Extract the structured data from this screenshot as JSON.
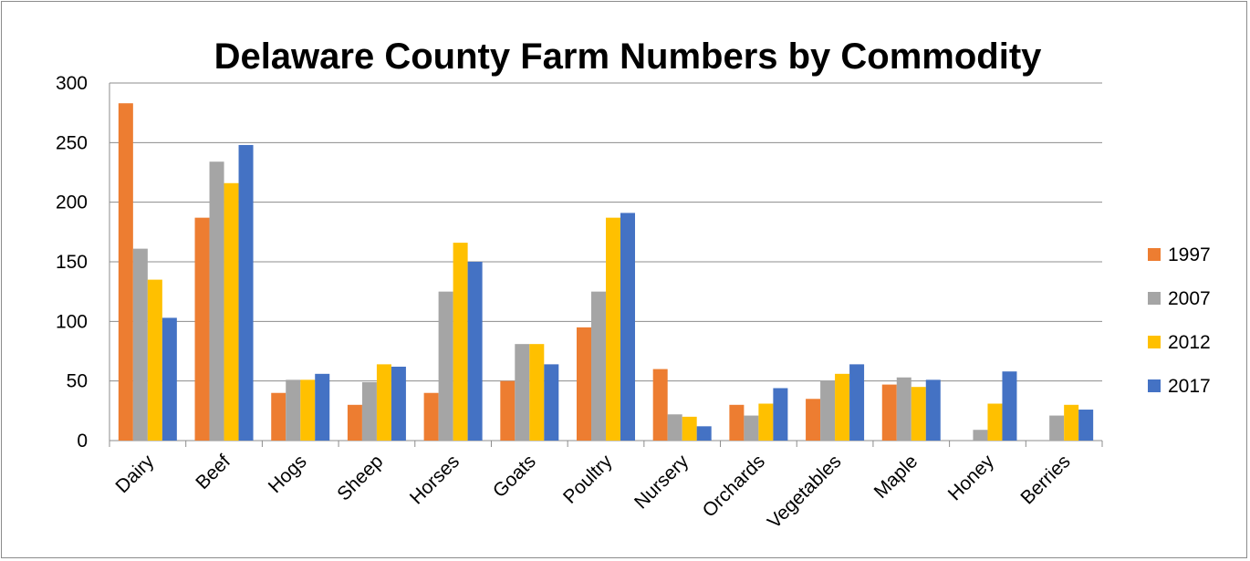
{
  "chart_data": {
    "type": "bar",
    "title": "Delaware County Farm Numbers by Commodity",
    "xlabel": "",
    "ylabel": "",
    "ylim": [
      0,
      300
    ],
    "yticks": [
      0,
      50,
      100,
      150,
      200,
      250,
      300
    ],
    "grid": true,
    "legend_position": "right",
    "categories": [
      "Dairy",
      "Beef",
      "Hogs",
      "Sheep",
      "Horses",
      "Goats",
      "Poultry",
      "Nursery",
      "Orchards",
      "Vegetables",
      "Maple",
      "Honey",
      "Berries"
    ],
    "series": [
      {
        "name": "1997",
        "color": "#ed7d31",
        "values": [
          283,
          187,
          40,
          30,
          40,
          50,
          95,
          60,
          30,
          35,
          47,
          0,
          0
        ]
      },
      {
        "name": "2007",
        "color": "#a5a5a5",
        "values": [
          161,
          234,
          51,
          49,
          125,
          81,
          125,
          22,
          21,
          50,
          53,
          9,
          21
        ]
      },
      {
        "name": "2012",
        "color": "#ffc000",
        "values": [
          135,
          216,
          51,
          64,
          166,
          81,
          187,
          20,
          31,
          56,
          45,
          31,
          30
        ]
      },
      {
        "name": "2017",
        "color": "#4472c4",
        "values": [
          103,
          248,
          56,
          62,
          150,
          64,
          191,
          12,
          44,
          64,
          51,
          58,
          26
        ]
      }
    ]
  }
}
